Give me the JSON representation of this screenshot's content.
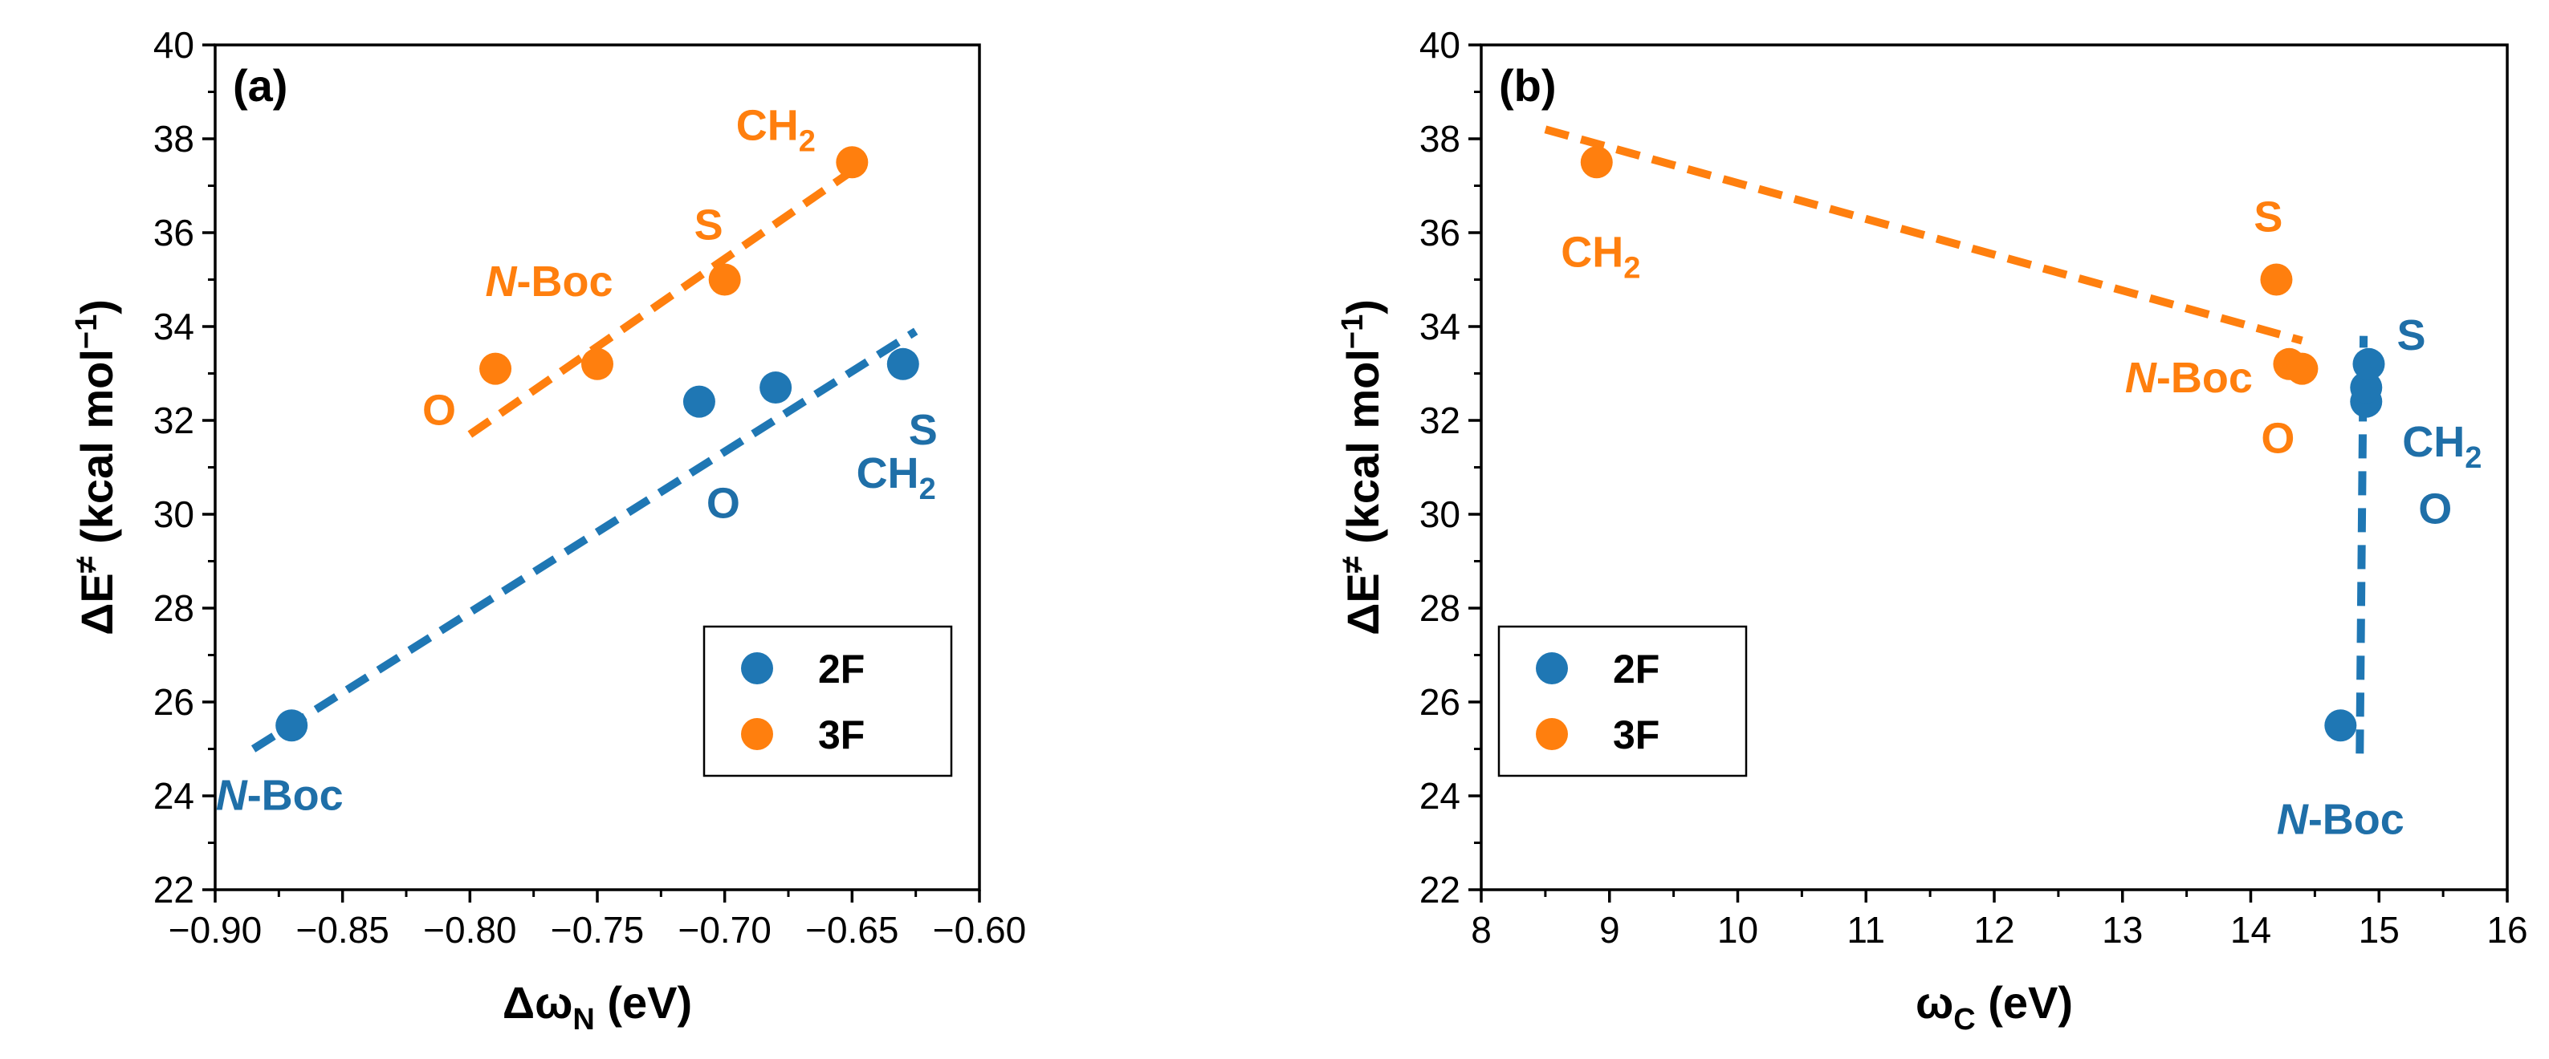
{
  "colors": {
    "blue": "#1f77b4",
    "orange": "#ff7f0e",
    "axis": "#000000"
  },
  "legend": {
    "items": [
      "2F",
      "3F"
    ]
  },
  "chart_data": [
    {
      "panel_label": "(a)",
      "type": "scatter",
      "xlabel": {
        "base": "Δω",
        "sub": "N",
        "rest": " (eV)"
      },
      "ylabel": {
        "base": "ΔE",
        "sup": "≠",
        "rest": " (kcal mol",
        "sup2": "−1",
        "end": ")"
      },
      "xlim": [
        -0.9,
        -0.6
      ],
      "ylim": [
        22,
        40
      ],
      "xticks": [
        -0.9,
        -0.85,
        -0.8,
        -0.75,
        -0.7,
        -0.65,
        -0.6
      ],
      "xtick_labels": [
        "−0.90",
        "−0.85",
        "−0.80",
        "−0.75",
        "−0.70",
        "−0.65",
        "−0.60"
      ],
      "yticks": [
        22,
        24,
        26,
        28,
        30,
        32,
        34,
        36,
        38,
        40
      ],
      "ytick_labels": [
        "22",
        "24",
        "26",
        "28",
        "30",
        "32",
        "34",
        "36",
        "38",
        "40"
      ],
      "legend_position": "bottom-right",
      "series": [
        {
          "name": "2F",
          "color": "#1f77b4",
          "points": [
            {
              "x": -0.87,
              "y": 25.5,
              "label": "N-Boc"
            },
            {
              "x": -0.71,
              "y": 32.4,
              "label": "O"
            },
            {
              "x": -0.68,
              "y": 32.7,
              "label": "CH2"
            },
            {
              "x": -0.63,
              "y": 33.2,
              "label": "S"
            }
          ],
          "fit": [
            [
              -0.885,
              25.0
            ],
            [
              -0.625,
              33.9
            ]
          ]
        },
        {
          "name": "3F",
          "color": "#ff7f0e",
          "points": [
            {
              "x": -0.79,
              "y": 33.1,
              "label": "O"
            },
            {
              "x": -0.75,
              "y": 33.2,
              "label": "N-Boc"
            },
            {
              "x": -0.7,
              "y": 35.0,
              "label": "S"
            },
            {
              "x": -0.65,
              "y": 37.5,
              "label": "CH2"
            }
          ],
          "fit": [
            [
              -0.8,
              31.7
            ],
            [
              -0.645,
              37.5
            ]
          ]
        }
      ]
    },
    {
      "panel_label": "(b)",
      "type": "scatter",
      "xlabel": {
        "base": "ω",
        "sub": "C",
        "rest": " (eV)"
      },
      "ylabel": {
        "base": "ΔE",
        "sup": "≠",
        "rest": " (kcal mol",
        "sup2": "−1",
        "end": ")"
      },
      "xlim": [
        8,
        16
      ],
      "ylim": [
        22,
        40
      ],
      "xticks": [
        8,
        9,
        10,
        11,
        12,
        13,
        14,
        15,
        16
      ],
      "xtick_labels": [
        "8",
        "9",
        "10",
        "11",
        "12",
        "13",
        "14",
        "15",
        "16"
      ],
      "yticks": [
        22,
        24,
        26,
        28,
        30,
        32,
        34,
        36,
        38,
        40
      ],
      "ytick_labels": [
        "22",
        "24",
        "26",
        "28",
        "30",
        "32",
        "34",
        "36",
        "38",
        "40"
      ],
      "legend_position": "bottom-left",
      "series": [
        {
          "name": "2F",
          "color": "#1f77b4",
          "points": [
            {
              "x": 14.7,
              "y": 25.5,
              "label": "N-Boc"
            },
            {
              "x": 14.9,
              "y": 32.4,
              "label": "O"
            },
            {
              "x": 14.9,
              "y": 32.7,
              "label": "CH2"
            },
            {
              "x": 14.92,
              "y": 33.2,
              "label": "S"
            }
          ],
          "fit": [
            [
              14.85,
              24.9
            ],
            [
              14.88,
              33.8
            ]
          ]
        },
        {
          "name": "3F",
          "color": "#ff7f0e",
          "points": [
            {
              "x": 8.9,
              "y": 37.5,
              "label": "CH2"
            },
            {
              "x": 14.2,
              "y": 35.0,
              "label": "S"
            },
            {
              "x": 14.3,
              "y": 33.2,
              "label": "N-Boc"
            },
            {
              "x": 14.4,
              "y": 33.1,
              "label": "O"
            }
          ],
          "fit": [
            [
              8.5,
              38.2
            ],
            [
              14.4,
              33.7
            ]
          ]
        }
      ]
    }
  ]
}
